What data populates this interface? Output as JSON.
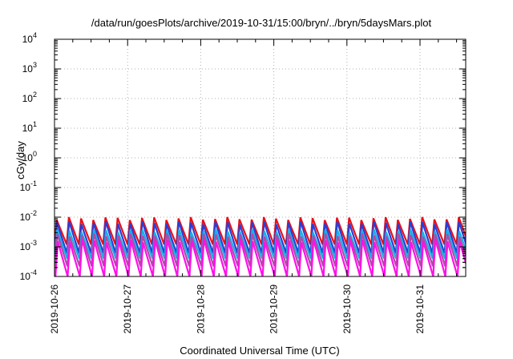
{
  "chart_data": {
    "type": "line",
    "title": "/data/run/goesPlots/archive/2019-10-31/15:00/bryn/../bryn/5daysMars.plot",
    "xlabel": "Coordinated Universal Time (UTC)",
    "ylabel": "cGy/day",
    "y_scale": "log",
    "ylim": [
      0.0001,
      10000
    ],
    "xlim": [
      "2019-10-26",
      "2019-10-31T15:00"
    ],
    "x_ticks": [
      "2019-10-26",
      "2019-10-27",
      "2019-10-28",
      "2019-10-29",
      "2019-10-30",
      "2019-10-31"
    ],
    "y_ticks": [
      {
        "base": "10",
        "exp": "4"
      },
      {
        "base": "10",
        "exp": "3"
      },
      {
        "base": "10",
        "exp": "2"
      },
      {
        "base": "10",
        "exp": "1"
      },
      {
        "base": "10",
        "exp": "0"
      },
      {
        "base": "10",
        "exp": "-1"
      },
      {
        "base": "10",
        "exp": "-2"
      },
      {
        "base": "10",
        "exp": "-3"
      },
      {
        "base": "10",
        "exp": "-4"
      }
    ],
    "grid": true,
    "legend": "none",
    "sawtooth_cycles_per_day": 6,
    "series": [
      {
        "color": "#e8101a",
        "peak": 0.009,
        "trough": 0.0012
      },
      {
        "color": "#2a3dd8",
        "peak": 0.0065,
        "trough": 0.0006
      },
      {
        "color": "#16b0e8",
        "peak": 0.0035,
        "trough": 0.0004
      },
      {
        "color": "#b04aa8",
        "peak": 0.0025,
        "trough": 0.00022
      },
      {
        "color": "#ff10e8",
        "peak": 0.0016,
        "trough": 0.0001
      }
    ]
  }
}
